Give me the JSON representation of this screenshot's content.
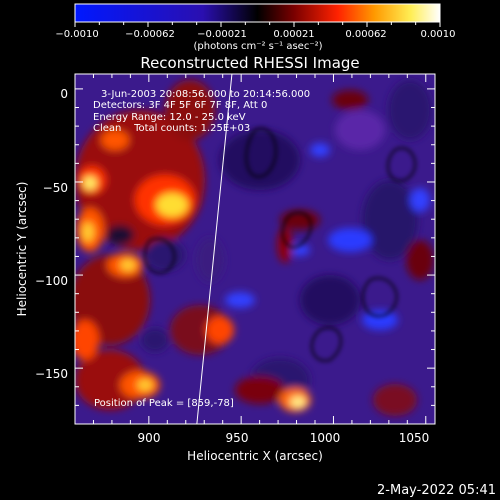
{
  "colorbar": {
    "ticks": [
      "−0.0010",
      "−0.00062",
      "−0.00021",
      "0.00021",
      "0.00062",
      "0.0010"
    ],
    "unit_label": "(photons cm⁻² s⁻¹ asec⁻²)",
    "stops": [
      "#0018ff",
      "#2a0fb0",
      "#000000",
      "#7a0000",
      "#ff2200",
      "#ff9900",
      "#ffee55",
      "#ffffff"
    ]
  },
  "title": "Reconstructed RHESSI Image",
  "info": {
    "time": "3-Jun-2003 20:08:56.000 to 20:14:56.000",
    "detectors": "Detectors: 3F 4F 5F 6F 7F 8F, Att 0",
    "energy": "Energy Range: 12.0 - 25.0 keV",
    "clean": "Clean    Total counts: 1.25E+03",
    "peak": "Position of Peak = [859,-78]"
  },
  "chart_data": {
    "type": "heatmap",
    "title": "Reconstructed RHESSI Image",
    "xlabel": "Heliocentric X (arcsec)",
    "ylabel": "Heliocentric Y (arcsec)",
    "xlim": [
      860,
      1055
    ],
    "ylim": [
      -180,
      8
    ],
    "xticks": [
      "900",
      "950",
      "1000",
      "1050"
    ],
    "yticks": [
      "0",
      "−50",
      "−100",
      "−150"
    ],
    "colorbar_range": [
      -0.001,
      0.001
    ],
    "limb_line": [
      [
        926,
        -180
      ],
      [
        945,
        8
      ]
    ]
  },
  "timestamp": "2-May-2022 05:41"
}
